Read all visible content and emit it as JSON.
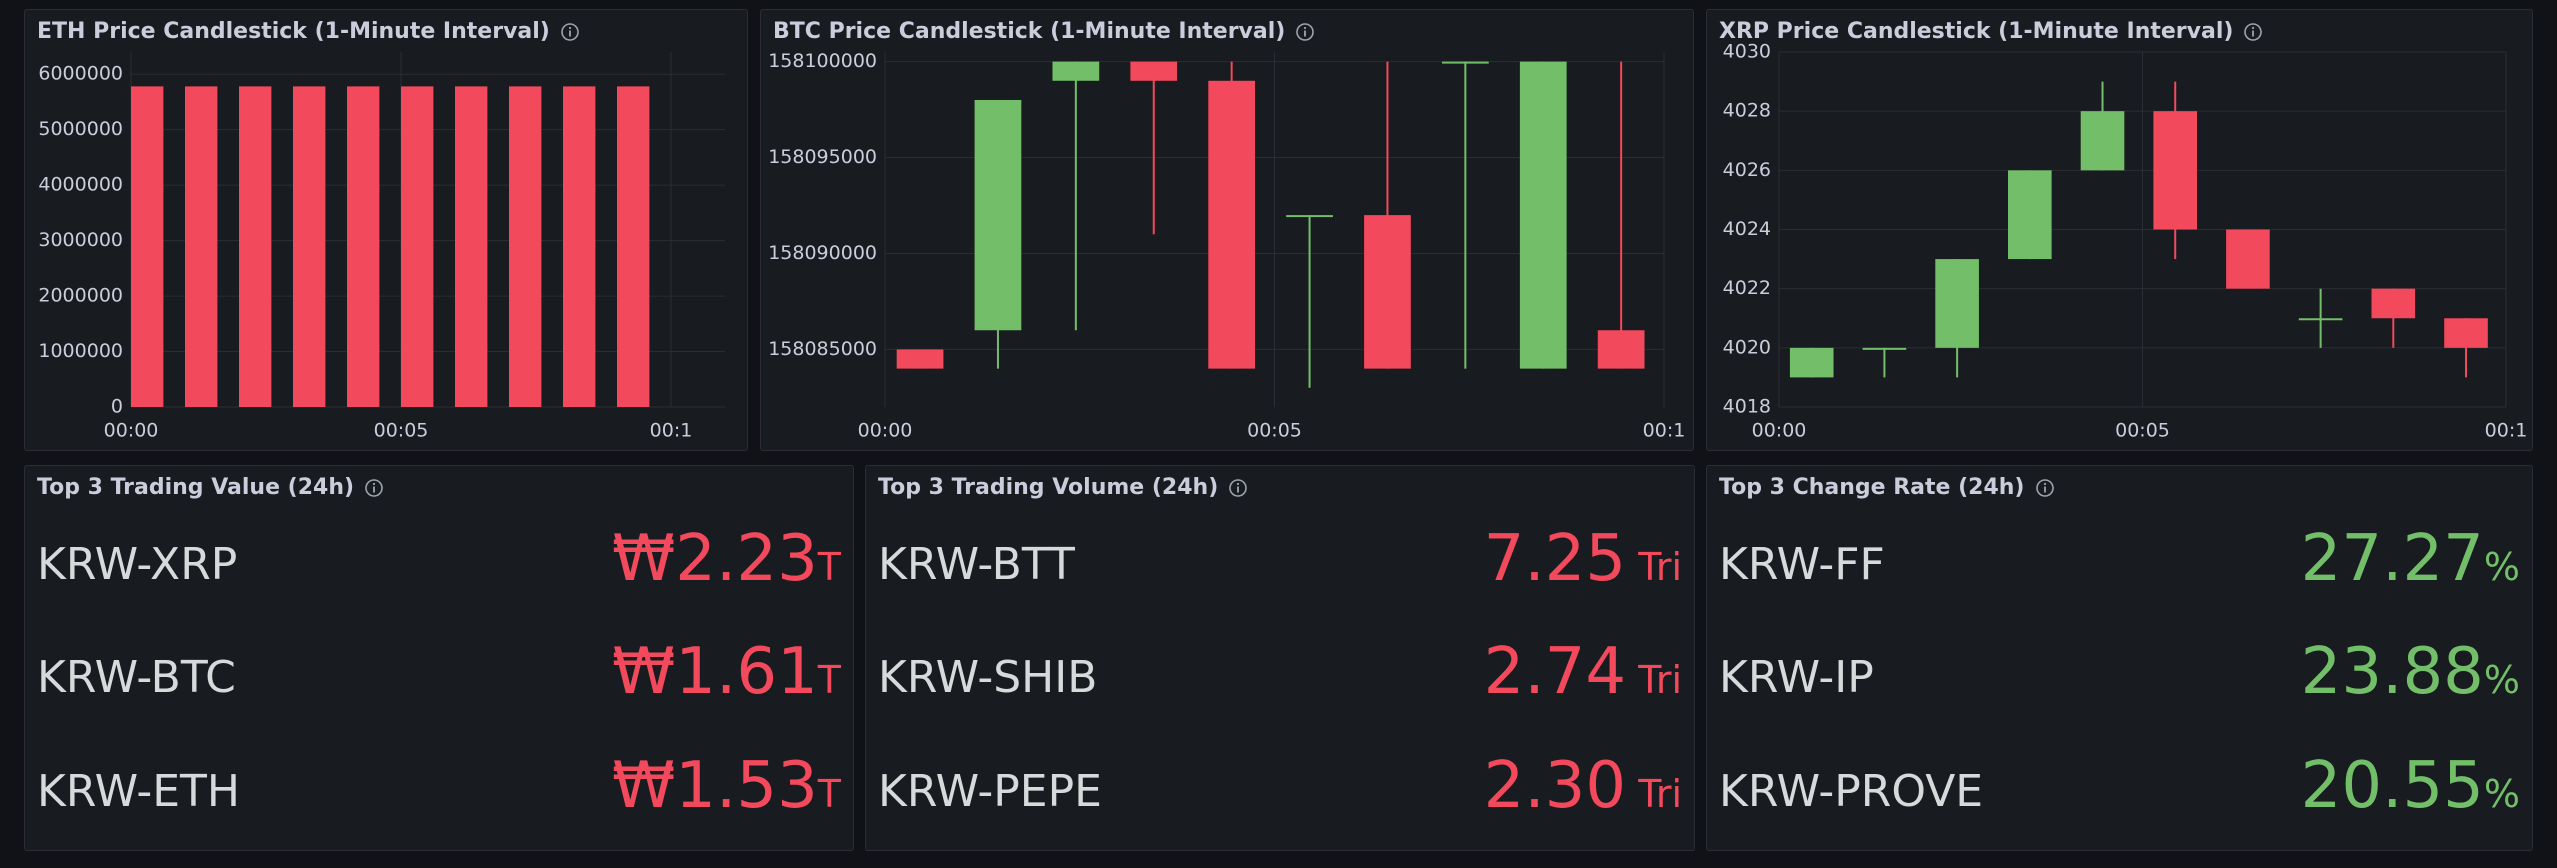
{
  "colors": {
    "up": "#73bf69",
    "down": "#f2495c",
    "grid": "#2a2d33",
    "text": "#ccccdc"
  },
  "panels": {
    "eth": {
      "title": "ETH Price Candlestick (1-Minute Interval)",
      "info_icon": "info-circle-icon",
      "chart_data": {
        "type": "bar",
        "title": "ETH Price Candlestick (1-Minute Interval)",
        "x_ticks": [
          "00:00",
          "00:05",
          "00:1"
        ],
        "y_ticks": [
          "0",
          "1000000",
          "2000000",
          "3000000",
          "4000000",
          "5000000",
          "6000000"
        ],
        "ylim": [
          0,
          6400000
        ],
        "categories": [
          "00:00",
          "00:01",
          "00:02",
          "00:03",
          "00:04",
          "00:05",
          "00:06",
          "00:07",
          "00:08",
          "00:09"
        ],
        "values": [
          5780000,
          5780000,
          5780000,
          5780000,
          5780000,
          5780000,
          5780000,
          5780000,
          5780000,
          5780000
        ],
        "grid": true
      }
    },
    "btc": {
      "title": "BTC Price Candlestick (1-Minute Interval)",
      "info_icon": "info-circle-icon",
      "chart_data": {
        "type": "candlestick",
        "title": "BTC Price Candlestick (1-Minute Interval)",
        "x_ticks": [
          "00:00",
          "00:05",
          "00:1"
        ],
        "y_ticks": [
          "158085000",
          "158090000",
          "158095000",
          "158100000"
        ],
        "ylim": [
          158082000,
          158100500
        ],
        "candles": [
          {
            "t": 0,
            "open": 158085000,
            "close": 158084000,
            "high": 158085000,
            "low": 158084000
          },
          {
            "t": 1,
            "open": 158086000,
            "close": 158098000,
            "high": 158098000,
            "low": 158084000
          },
          {
            "t": 2,
            "open": 158099000,
            "close": 158100000,
            "high": 158100000,
            "low": 158086000
          },
          {
            "t": 3,
            "open": 158100000,
            "close": 158099000,
            "high": 158100000,
            "low": 158091000
          },
          {
            "t": 4,
            "open": 158099000,
            "close": 158084000,
            "high": 158100000,
            "low": 158084000
          },
          {
            "t": 5,
            "open": 158092000,
            "close": 158092000,
            "high": 158092000,
            "low": 158083000
          },
          {
            "t": 6,
            "open": 158092000,
            "close": 158084000,
            "high": 158100000,
            "low": 158084000
          },
          {
            "t": 7,
            "open": 158100000,
            "close": 158100000,
            "high": 158100000,
            "low": 158084000
          },
          {
            "t": 8,
            "open": 158084000,
            "close": 158100000,
            "high": 158100000,
            "low": 158084000
          },
          {
            "t": 9,
            "open": 158086000,
            "close": 158084000,
            "high": 158100000,
            "low": 158084000
          }
        ],
        "grid": true
      }
    },
    "xrp": {
      "title": "XRP Price Candlestick (1-Minute Interval)",
      "info_icon": "info-circle-icon",
      "chart_data": {
        "type": "candlestick",
        "title": "XRP Price Candlestick (1-Minute Interval)",
        "x_ticks": [
          "00:00",
          "00:05",
          "00:1"
        ],
        "y_ticks": [
          "4018",
          "4020",
          "4022",
          "4024",
          "4026",
          "4028",
          "4030"
        ],
        "ylim": [
          4018,
          4030
        ],
        "candles": [
          {
            "t": 0,
            "open": 4019,
            "close": 4020,
            "high": 4020,
            "low": 4019
          },
          {
            "t": 1,
            "open": 4020,
            "close": 4020,
            "high": 4020,
            "low": 4019
          },
          {
            "t": 2,
            "open": 4020,
            "close": 4023,
            "high": 4023,
            "low": 4019
          },
          {
            "t": 3,
            "open": 4023,
            "close": 4026,
            "high": 4026,
            "low": 4023
          },
          {
            "t": 4,
            "open": 4026,
            "close": 4028,
            "high": 4029,
            "low": 4026
          },
          {
            "t": 5,
            "open": 4028,
            "close": 4024,
            "high": 4029,
            "low": 4023
          },
          {
            "t": 6,
            "open": 4024,
            "close": 4022,
            "high": 4024,
            "low": 4022
          },
          {
            "t": 7,
            "open": 4021,
            "close": 4021,
            "high": 4022,
            "low": 4020
          },
          {
            "t": 8,
            "open": 4022,
            "close": 4021,
            "high": 4022,
            "low": 4020
          },
          {
            "t": 9,
            "open": 4021,
            "close": 4020,
            "high": 4021,
            "low": 4019
          }
        ],
        "grid": true
      }
    },
    "value": {
      "title": "Top 3 Trading Value (24h)",
      "info_icon": "info-circle-icon",
      "rows": [
        {
          "name": "KRW-XRP",
          "value": "₩2.23",
          "unit": "T"
        },
        {
          "name": "KRW-BTC",
          "value": "₩1.61",
          "unit": "T"
        },
        {
          "name": "KRW-ETH",
          "value": "₩1.53",
          "unit": "T"
        }
      ]
    },
    "volume": {
      "title": "Top 3 Trading Volume (24h)",
      "info_icon": "info-circle-icon",
      "rows": [
        {
          "name": "KRW-BTT",
          "value": "7.25",
          "unit": " Tri"
        },
        {
          "name": "KRW-SHIB",
          "value": "2.74",
          "unit": " Tri"
        },
        {
          "name": "KRW-PEPE",
          "value": "2.30",
          "unit": " Tri"
        }
      ]
    },
    "change": {
      "title": "Top 3 Change Rate (24h)",
      "info_icon": "info-circle-icon",
      "rows": [
        {
          "name": "KRW-FF",
          "value": "27.27",
          "unit": "%"
        },
        {
          "name": "KRW-IP",
          "value": "23.88",
          "unit": "%"
        },
        {
          "name": "KRW-PROVE",
          "value": "20.55",
          "unit": "%"
        }
      ]
    }
  }
}
